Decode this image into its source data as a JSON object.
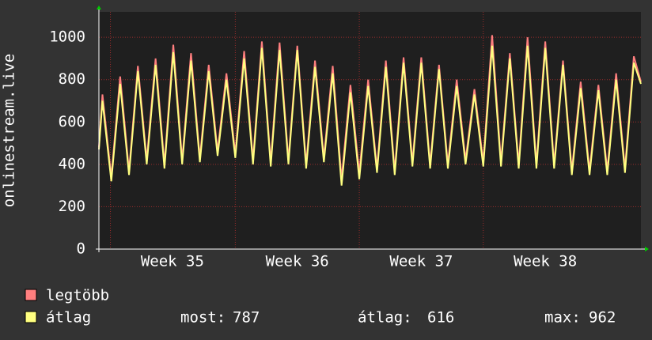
{
  "chart_data": {
    "type": "line",
    "y_label": "onlinestream.live",
    "xlim": [
      0,
      30.6
    ],
    "xticks": [
      {
        "value": 4.15,
        "label": "Week 35"
      },
      {
        "value": 11.2,
        "label": "Week 36"
      },
      {
        "value": 18.2,
        "label": "Week 37"
      },
      {
        "value": 25.2,
        "label": "Week 38"
      }
    ],
    "ylim": [
      0,
      1120
    ],
    "yticks": [
      0,
      200,
      400,
      600,
      800,
      1000
    ],
    "grid": true,
    "x": [
      0,
      0.2,
      0.7,
      1.2,
      1.7,
      2.2,
      2.7,
      3.2,
      3.7,
      4.2,
      4.7,
      5.2,
      5.7,
      6.2,
      6.7,
      7.2,
      7.7,
      8.2,
      8.7,
      9.2,
      9.7,
      10.2,
      10.7,
      11.2,
      11.7,
      12.2,
      12.7,
      13.2,
      13.7,
      14.2,
      14.7,
      15.2,
      15.7,
      16.2,
      16.7,
      17.2,
      17.7,
      18.2,
      18.7,
      19.2,
      19.7,
      20.2,
      20.7,
      21.2,
      21.7,
      22.2,
      22.7,
      23.2,
      23.7,
      24.2,
      24.7,
      25.2,
      25.7,
      26.2,
      26.7,
      27.2,
      27.7,
      28.2,
      28.7,
      29.2,
      29.7,
      30.2,
      30.6
    ],
    "series": [
      {
        "name": "legtöbb",
        "color": "#ff7f7f",
        "values": [
          480,
          730,
          340,
          815,
          370,
          865,
          420,
          900,
          400,
          965,
          420,
          925,
          430,
          870,
          460,
          830,
          450,
          935,
          420,
          980,
          410,
          975,
          420,
          960,
          400,
          890,
          430,
          865,
          330,
          775,
          360,
          800,
          380,
          890,
          370,
          905,
          410,
          905,
          400,
          870,
          400,
          800,
          420,
          755,
          410,
          1010,
          410,
          925,
          400,
          1000,
          400,
          980,
          400,
          890,
          370,
          790,
          370,
          775,
          370,
          830,
          380,
          910,
          790
        ]
      },
      {
        "name": "átlag",
        "color": "#ffff80",
        "values": [
          470,
          700,
          320,
          780,
          350,
          840,
          400,
          870,
          380,
          930,
          400,
          890,
          410,
          840,
          440,
          800,
          430,
          900,
          400,
          950,
          390,
          940,
          400,
          940,
          380,
          860,
          410,
          830,
          300,
          740,
          330,
          770,
          360,
          860,
          350,
          880,
          390,
          880,
          380,
          850,
          380,
          770,
          400,
          730,
          390,
          960,
          390,
          900,
          380,
          960,
          380,
          950,
          380,
          870,
          350,
          760,
          350,
          750,
          350,
          800,
          360,
          880,
          780
        ]
      }
    ],
    "stats": [
      {
        "label": "most:",
        "value": 787
      },
      {
        "label": "átlag:",
        "value": 616
      },
      {
        "label": "max:",
        "value": 962
      }
    ]
  }
}
